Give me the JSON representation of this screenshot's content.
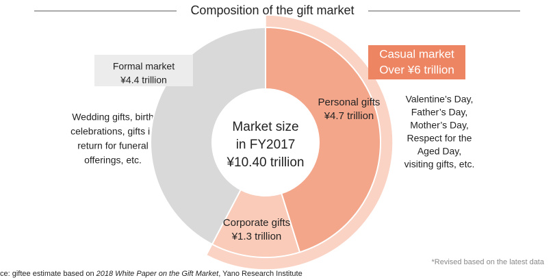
{
  "chart_data": {
    "type": "donut",
    "title": "Composition of the gift market",
    "categories": [
      "Personal gifts",
      "Corporate gifts",
      "Formal market"
    ],
    "values": [
      4.7,
      1.3,
      4.4
    ],
    "value_labels": [
      "¥4.7 trillion",
      "¥1.3 trillion",
      "¥4.4 trillion"
    ],
    "colors": [
      "#f4a68b",
      "#f9cbb8",
      "#d9d9d9"
    ],
    "center_label": [
      "Market size",
      "in FY2017",
      "¥10.40 trillion"
    ],
    "group": {
      "label": [
        "Casual market",
        "Over ¥6 trillion"
      ],
      "color": "#ee8562",
      "ring_color": "#fad3c4",
      "members": [
        0,
        1
      ]
    },
    "notes": {
      "formal": [
        "Wedding gifts, birth",
        "celebrations, gifts in",
        "return for funeral",
        "offerings, etc."
      ],
      "personal": [
        "Valentine’s Day,",
        "Father’s Day,",
        "Mother’s Day,",
        "Respect for the",
        "Aged Day,",
        "visiting gifts, etc."
      ]
    },
    "source": [
      "ce: giftee estimate based on ",
      "2018 White Paper on the Gift Market",
      ", Yano Research Institute"
    ],
    "footnote": "*Revised based on the latest data"
  }
}
